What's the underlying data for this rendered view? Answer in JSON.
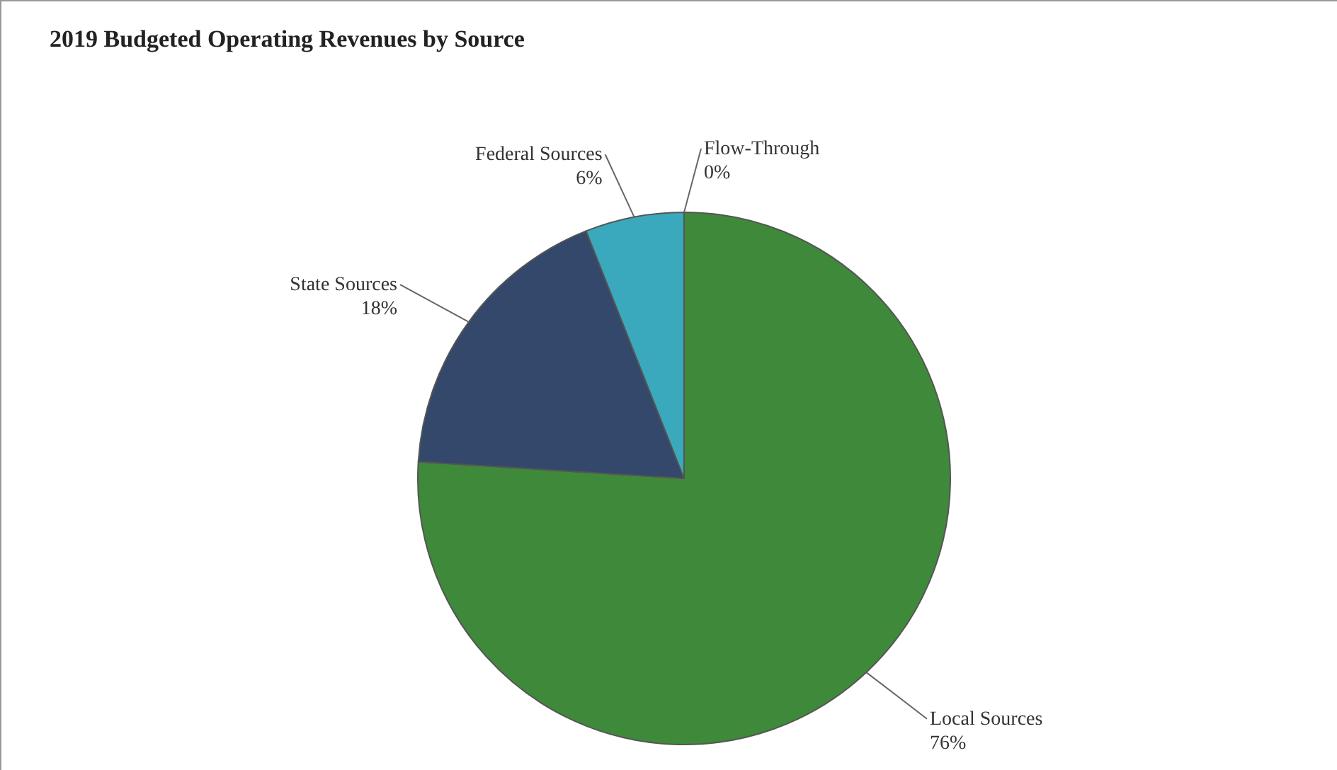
{
  "chart_data": {
    "type": "pie",
    "title": "2019 Budgeted Operating Revenues by Source",
    "categories": [
      "Flow-Through",
      "Local Sources",
      "State Sources",
      "Federal Sources"
    ],
    "values": [
      0,
      76,
      18,
      6
    ],
    "colors": [
      "#8a8a8a",
      "#3e8a3a",
      "#34486b",
      "#3aa9bd"
    ],
    "value_labels": [
      "0%",
      "76%",
      "18%",
      "6%"
    ]
  }
}
